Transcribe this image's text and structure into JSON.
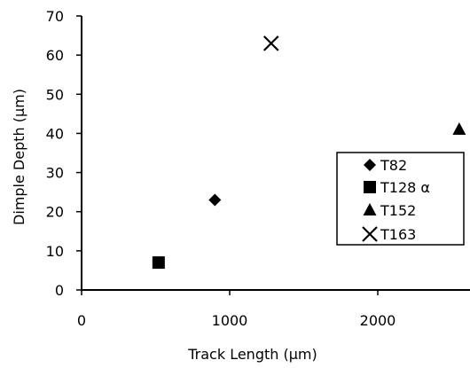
{
  "chart_data": {
    "type": "scatter",
    "xlabel": "Track Length (µm)",
    "ylabel": "Dimple Depth (µm)",
    "xlim": [
      0,
      2600
    ],
    "ylim": [
      0,
      70
    ],
    "x_ticks": [
      0,
      1000,
      2000
    ],
    "y_ticks": [
      0,
      10,
      20,
      30,
      40,
      50,
      60,
      70
    ],
    "grid": false,
    "legend_position": "right",
    "series": [
      {
        "name": "T82",
        "marker": "diamond",
        "points": [
          {
            "x": 900,
            "y": 23
          }
        ]
      },
      {
        "name": "T128 α",
        "marker": "square",
        "points": [
          {
            "x": 520,
            "y": 7
          }
        ]
      },
      {
        "name": "T152",
        "marker": "triangle",
        "points": [
          {
            "x": 2550,
            "y": 41
          }
        ]
      },
      {
        "name": "T163",
        "marker": "cross",
        "points": [
          {
            "x": 1280,
            "y": 63
          }
        ]
      }
    ],
    "colors": {
      "marker": "#000000",
      "axis": "#000000"
    }
  }
}
